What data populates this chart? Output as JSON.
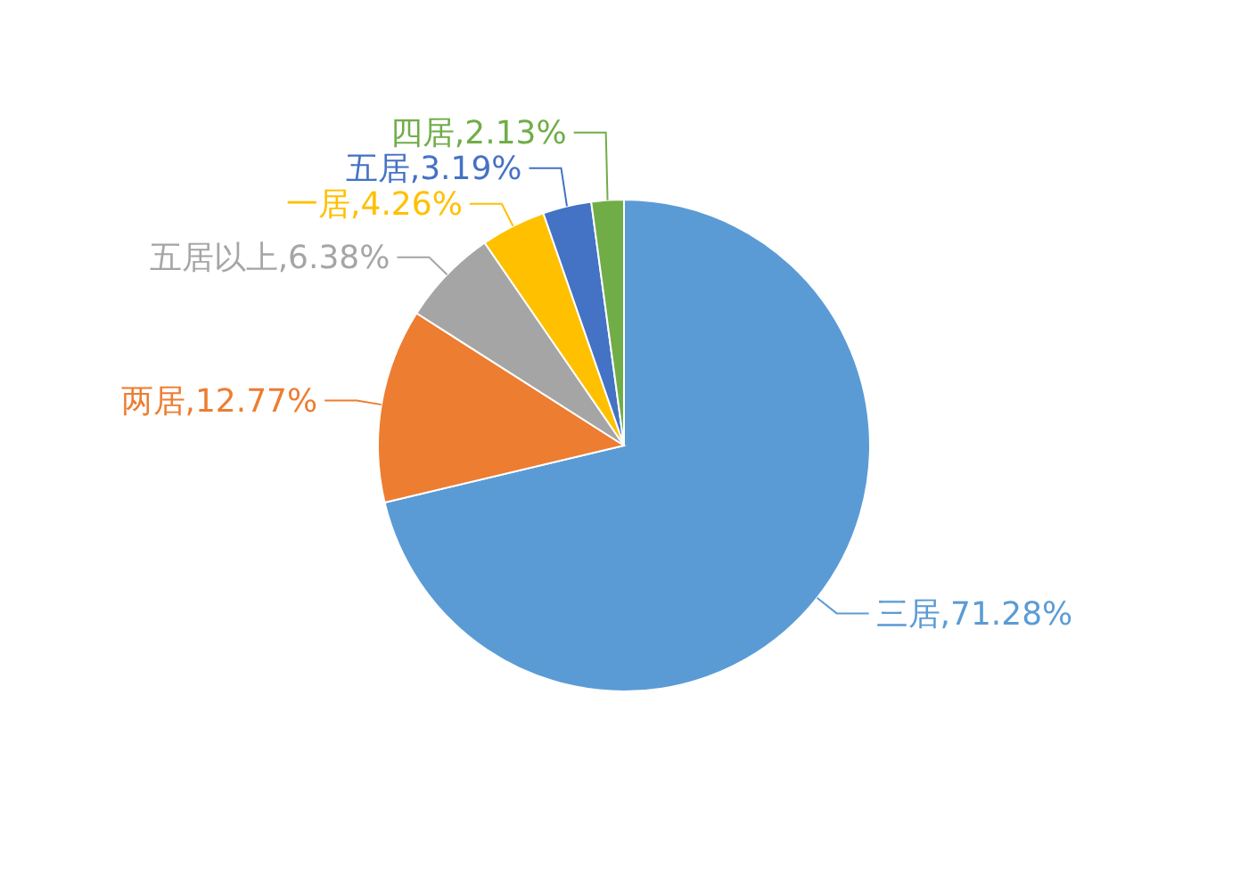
{
  "chart_data": {
    "type": "pie",
    "categories": [
      "三居",
      "两居",
      "五居以上",
      "一居",
      "五居",
      "四居"
    ],
    "values": [
      71.28,
      12.77,
      6.38,
      4.26,
      3.19,
      2.13
    ],
    "value_labels": [
      "71.28%",
      "12.77%",
      "6.38%",
      "4.26%",
      "3.19%",
      "2.13%"
    ],
    "colors": [
      "#5b9bd5",
      "#ed7d31",
      "#a5a5a5",
      "#ffc000",
      "#4472c4",
      "#70ad47"
    ],
    "data_labels": true
  }
}
